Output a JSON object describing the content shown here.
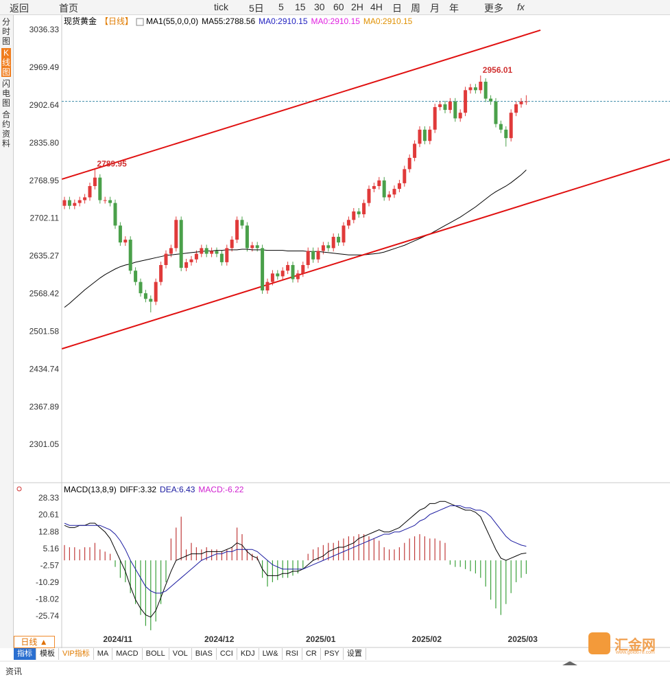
{
  "toolbar": {
    "back": "返回",
    "home": "首页",
    "periods": [
      "tick",
      "5日",
      "5",
      "15",
      "30",
      "60",
      "2H",
      "4H",
      "日",
      "周",
      "月",
      "年"
    ],
    "more": "更多",
    "fx": "fx"
  },
  "sidebar": {
    "items": [
      "分时图",
      "K线图",
      "闪电图",
      "合约资料"
    ],
    "active": 1
  },
  "chart_data": [
    {
      "type": "candlestick",
      "title": "现货黄金",
      "period": "【日线】",
      "indicator": "MA1(55,0,0,0)",
      "legend": [
        {
          "text": "MA55:2788.56",
          "color": "#000000"
        },
        {
          "text": "MA0:2910.15",
          "color": "#2020c0"
        },
        {
          "text": "MA0:2910.15",
          "color": "#e020e0"
        },
        {
          "text": "MA0:2910.15",
          "color": "#e09000"
        }
      ],
      "up_color": "#e03a3a",
      "down_color": "#4aa04a",
      "grid": false,
      "ylim": [
        2237.8,
        3065.5
      ],
      "yticks": [
        3036.33,
        2969.49,
        2902.64,
        {
          "value": 2835.8,
          "label": "2835.80"
        },
        2768.95,
        2702.11,
        2635.27,
        2568.42,
        2501.58,
        2434.74,
        2367.89,
        2301.05
      ],
      "open": [
        2725,
        2735,
        2725,
        2730,
        2735,
        2740,
        2760,
        2775,
        2735,
        2735,
        2730,
        2690,
        2660,
        2665,
        2610,
        2590,
        2570,
        2560,
        2555,
        2590,
        2620,
        2640,
        2650,
        2700,
        2615,
        2625,
        2630,
        2640,
        2650,
        2640,
        2645,
        2640,
        2625,
        2650,
        2665,
        2700,
        2690,
        2650,
        2655,
        2650,
        2575,
        2590,
        2605,
        2600,
        2610,
        2620,
        2595,
        2605,
        2620,
        2645,
        2630,
        2645,
        2655,
        2650,
        2670,
        2660,
        2690,
        2700,
        2715,
        2710,
        2730,
        2755,
        2760,
        2770,
        2740,
        2745,
        2755,
        2765,
        2790,
        2810,
        2835,
        2860,
        2840,
        2860,
        2900,
        2905,
        2895,
        2910,
        2880,
        2890,
        2930,
        2935,
        2930,
        2945,
        2915,
        2910,
        2870,
        2860,
        2845,
        2890,
        2905,
        2910
      ],
      "high": [
        2741,
        2741,
        2736,
        2741,
        2746,
        2766,
        2789.95,
        2781,
        2741,
        2741,
        2736,
        2696,
        2671,
        2671,
        2616,
        2596,
        2576,
        2566,
        2596,
        2626,
        2646,
        2656,
        2706,
        2706,
        2631,
        2636,
        2646,
        2656,
        2656,
        2651,
        2651,
        2646,
        2656,
        2671,
        2706,
        2706,
        2696,
        2661,
        2661,
        2656,
        2596,
        2611,
        2611,
        2616,
        2626,
        2626,
        2611,
        2626,
        2651,
        2651,
        2651,
        2661,
        2661,
        2676,
        2676,
        2696,
        2706,
        2721,
        2721,
        2736,
        2761,
        2766,
        2776,
        2776,
        2751,
        2761,
        2771,
        2796,
        2816,
        2841,
        2866,
        2866,
        2866,
        2906,
        2911,
        2911,
        2916,
        2916,
        2896,
        2936,
        2941,
        2941,
        2956.01,
        2951,
        2921,
        2916,
        2876,
        2866,
        2896,
        2911,
        2916,
        2921
      ],
      "low": [
        2719,
        2719,
        2719,
        2724,
        2729,
        2734,
        2754,
        2729,
        2729,
        2724,
        2684,
        2654,
        2654,
        2604,
        2584,
        2564,
        2554,
        2536,
        2549,
        2584,
        2614,
        2634,
        2644,
        2609,
        2609,
        2619,
        2624,
        2634,
        2634,
        2634,
        2634,
        2619,
        2619,
        2644,
        2659,
        2684,
        2644,
        2644,
        2644,
        2569,
        2569,
        2584,
        2594,
        2594,
        2604,
        2589,
        2589,
        2599,
        2614,
        2624,
        2624,
        2639,
        2644,
        2644,
        2654,
        2654,
        2684,
        2694,
        2704,
        2704,
        2724,
        2749,
        2754,
        2734,
        2734,
        2739,
        2749,
        2759,
        2784,
        2804,
        2829,
        2834,
        2834,
        2854,
        2894,
        2889,
        2889,
        2874,
        2874,
        2884,
        2924,
        2924,
        2924,
        2909,
        2904,
        2864,
        2854,
        2830,
        2839,
        2884,
        2899,
        2904
      ],
      "close": [
        2735,
        2725,
        2730,
        2735,
        2740,
        2760,
        2775,
        2735,
        2735,
        2730,
        2690,
        2660,
        2665,
        2610,
        2590,
        2570,
        2560,
        2555,
        2590,
        2620,
        2640,
        2650,
        2700,
        2615,
        2625,
        2630,
        2640,
        2650,
        2640,
        2645,
        2640,
        2625,
        2650,
        2665,
        2700,
        2690,
        2650,
        2655,
        2650,
        2575,
        2590,
        2605,
        2600,
        2610,
        2620,
        2595,
        2605,
        2620,
        2645,
        2630,
        2645,
        2655,
        2650,
        2670,
        2660,
        2690,
        2700,
        2715,
        2710,
        2730,
        2755,
        2760,
        2770,
        2740,
        2745,
        2755,
        2765,
        2790,
        2810,
        2835,
        2860,
        2840,
        2860,
        2900,
        2905,
        2895,
        2910,
        2880,
        2890,
        2930,
        2935,
        2930,
        2945,
        2915,
        2910,
        2870,
        2860,
        2845,
        2890,
        2905,
        2910,
        2910.15
      ],
      "ma": {
        "color": "#000000",
        "values": [
          2545,
          2552,
          2560,
          2568,
          2576,
          2583,
          2590,
          2597,
          2603,
          2608,
          2613,
          2617,
          2620,
          2622,
          2625,
          2627,
          2629,
          2631,
          2633,
          2635,
          2637,
          2638,
          2639,
          2640,
          2641,
          2642,
          2643,
          2644,
          2645,
          2645,
          2646,
          2646,
          2647,
          2647,
          2647,
          2648,
          2648,
          2647,
          2647,
          2647,
          2646,
          2646,
          2646,
          2646,
          2645,
          2645,
          2645,
          2645,
          2644,
          2644,
          2644,
          2643,
          2642,
          2641,
          2640,
          2639,
          2638,
          2638,
          2638,
          2638,
          2639,
          2640,
          2641,
          2643,
          2646,
          2649,
          2652,
          2655,
          2659,
          2663,
          2667,
          2671,
          2675,
          2680,
          2685,
          2690,
          2695,
          2700,
          2705,
          2711,
          2717,
          2723,
          2730,
          2737,
          2744,
          2750,
          2755,
          2760,
          2766,
          2773,
          2780,
          2788.56
        ]
      },
      "last_price": 2910.15,
      "last_price_color": "#3a8aa8",
      "annotations": [
        {
          "index": 6,
          "value": 2789.95
        },
        {
          "index": 82,
          "value": 2956.01
        }
      ],
      "annotation_color": "#d03030",
      "trendlines": [
        {
          "color": "#e01010",
          "points": [
            [
              -0.5,
              2772.2
            ],
            [
              93.8,
              3036.33
            ]
          ]
        },
        {
          "color": "#e01010",
          "points": [
            [
              -0.5,
              2471.5
            ],
            [
              119.3,
              2807.5
            ]
          ]
        }
      ]
    },
    {
      "type": "macd",
      "title": "MACD(13,8,9)",
      "grid": false,
      "ylim": [
        -34.23,
        34.93
      ],
      "yticks": [
        28.33,
        20.61,
        12.88,
        5.16,
        -2.57,
        -10.29,
        -18.02,
        -25.74
      ],
      "lines": [
        {
          "legend": "DIFF:3.32",
          "color": "#000000",
          "values": [
            16,
            15,
            15,
            16,
            16,
            17,
            17,
            15,
            13,
            10,
            5,
            0,
            -5,
            -12,
            -18,
            -22,
            -25,
            -26,
            -23,
            -17,
            -11,
            -5,
            0,
            1,
            2,
            3,
            3,
            3,
            4,
            4,
            4,
            4,
            5,
            6,
            8,
            7,
            4,
            2,
            1,
            -4,
            -7,
            -7,
            -7,
            -6,
            -6,
            -5,
            -5,
            -4,
            -2,
            0,
            1,
            2,
            4,
            5,
            6,
            6,
            7,
            8,
            10,
            11,
            12,
            13,
            14,
            13,
            13,
            14,
            15,
            17,
            19,
            21,
            23,
            24,
            26,
            26,
            27,
            27,
            26,
            25,
            24,
            23,
            23,
            22,
            20,
            15,
            10,
            5,
            1,
            0,
            1,
            2,
            3,
            3.32
          ]
        },
        {
          "legend": "DEA:6.43",
          "color": "#1a1aa0",
          "values": [
            17,
            16,
            16,
            16,
            16,
            16,
            16,
            16,
            15,
            14,
            12,
            9,
            5,
            0,
            -4,
            -8,
            -12,
            -14,
            -15,
            -15,
            -14,
            -12,
            -10,
            -8,
            -6,
            -4,
            -2,
            0,
            1,
            2,
            3,
            3,
            4,
            4,
            5,
            5,
            5,
            5,
            4,
            2,
            0,
            -2,
            -3,
            -4,
            -4,
            -4,
            -4,
            -4,
            -3,
            -2,
            -1,
            0,
            1,
            2,
            3,
            4,
            5,
            6,
            7,
            8,
            9,
            10,
            11,
            12,
            12,
            13,
            13,
            14,
            15,
            16,
            18,
            19,
            21,
            22,
            23,
            24,
            25,
            25,
            25,
            24,
            24,
            23,
            23,
            22,
            20,
            17,
            14,
            11,
            9,
            8,
            7,
            6.43
          ]
        }
      ],
      "histogram": {
        "legend": "MACD:-6.22",
        "color": "#d020d0",
        "up_color": "#c03a3a",
        "down_color": "#3aa03a",
        "values": [
          7,
          6,
          6,
          5,
          6,
          6,
          8,
          5,
          4,
          3,
          -3,
          -8,
          -10,
          -15,
          -20,
          -25,
          -30,
          -32,
          -28,
          -20,
          -10,
          10,
          15,
          20,
          5,
          8,
          6,
          5,
          6,
          5,
          5,
          4,
          5,
          6,
          15,
          12,
          5,
          3,
          2,
          -8,
          -12,
          -10,
          -9,
          -8,
          -8,
          -7,
          -6,
          -4,
          3,
          5,
          6,
          7,
          8,
          8,
          9,
          10,
          11,
          11,
          12,
          12,
          11,
          10,
          9,
          6,
          5,
          5,
          6,
          8,
          10,
          11,
          12,
          11,
          10,
          10,
          9,
          8,
          -2,
          -3,
          -3,
          -4,
          -5,
          -6,
          -8,
          -12,
          -18,
          -22,
          -25,
          -20,
          -15,
          -10,
          -8,
          -6.22
        ]
      },
      "x_labels": [
        {
          "label": "2024/11",
          "index": 10.5
        },
        {
          "label": "2024/12",
          "index": 30.5
        },
        {
          "label": "2025/01",
          "index": 50.5
        },
        {
          "label": "2025/02",
          "index": 71.4
        },
        {
          "label": "2025/03",
          "index": 90.3
        }
      ]
    }
  ],
  "footer": {
    "period_tab": "日线 ▲",
    "tabs": [
      "指标",
      "模板",
      "VIP指标",
      "MA",
      "MACD",
      "BOLL",
      "VOL",
      "BIAS",
      "CCI",
      "KDJ",
      "LW&",
      "RSI",
      "CR",
      "PSY",
      "设置"
    ],
    "active": 0,
    "vip": 2
  },
  "watermark": {
    "text": "汇金网",
    "url": "www.gold678.com"
  },
  "news": "资讯"
}
